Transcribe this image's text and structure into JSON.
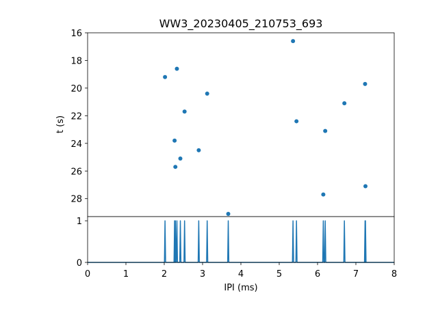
{
  "chart_data": [
    {
      "type": "scatter",
      "title": "WW3_20230405_210753_693",
      "ylabel": "t (s)",
      "xlim": [
        0,
        8
      ],
      "ylim": [
        29.3,
        16.0
      ],
      "y_inverted": true,
      "yticks": [
        16,
        18,
        20,
        22,
        24,
        26,
        28
      ],
      "color": "#1f77b4",
      "points": [
        {
          "x": 2.02,
          "y": 19.2
        },
        {
          "x": 2.33,
          "y": 18.6
        },
        {
          "x": 3.12,
          "y": 20.4
        },
        {
          "x": 2.53,
          "y": 21.7
        },
        {
          "x": 2.27,
          "y": 23.8
        },
        {
          "x": 2.42,
          "y": 25.1
        },
        {
          "x": 2.9,
          "y": 24.5
        },
        {
          "x": 2.29,
          "y": 25.7
        },
        {
          "x": 3.67,
          "y": 29.1
        },
        {
          "x": 5.36,
          "y": 16.6
        },
        {
          "x": 5.45,
          "y": 22.4
        },
        {
          "x": 6.2,
          "y": 23.1
        },
        {
          "x": 6.7,
          "y": 21.1
        },
        {
          "x": 7.24,
          "y": 19.7
        },
        {
          "x": 6.15,
          "y": 27.7
        },
        {
          "x": 7.25,
          "y": 27.1
        }
      ]
    },
    {
      "type": "line",
      "xlabel": "IPI (ms)",
      "xlim": [
        0,
        8
      ],
      "ylim": [
        0,
        1.1
      ],
      "xticks": [
        0,
        1,
        2,
        3,
        4,
        5,
        6,
        7,
        8
      ],
      "yticks": [
        0,
        1
      ],
      "color": "#1f77b4",
      "baseline": 0,
      "spike_height": 1,
      "spikes": [
        2.02,
        2.27,
        2.29,
        2.33,
        2.42,
        2.53,
        2.9,
        3.12,
        3.67,
        5.36,
        5.45,
        6.15,
        6.2,
        6.7,
        7.24,
        7.25
      ]
    }
  ]
}
